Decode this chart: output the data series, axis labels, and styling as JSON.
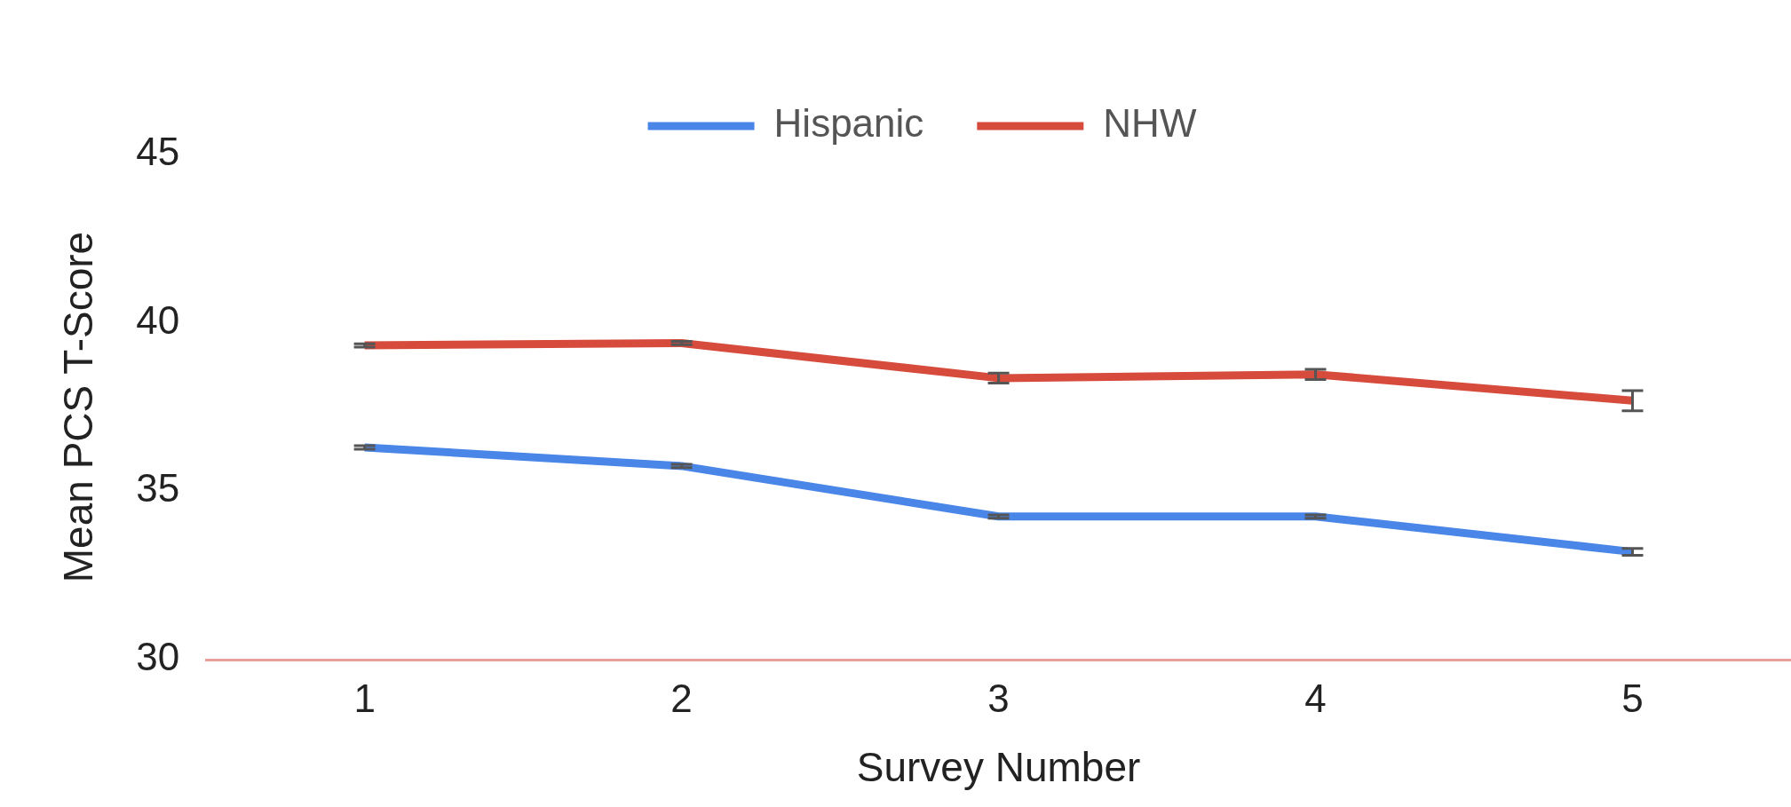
{
  "chart_data": {
    "type": "line",
    "xlabel": "Survey Number",
    "ylabel": "Mean PCS T-Score",
    "categories": [
      "1",
      "2",
      "3",
      "4",
      "5"
    ],
    "series": [
      {
        "name": "Hispanic",
        "color": "#4a86e8",
        "values": [
          36.3,
          35.75,
          34.25,
          34.25,
          33.2
        ],
        "errors": [
          0.05,
          0.05,
          0.05,
          0.05,
          0.1
        ]
      },
      {
        "name": "NHW",
        "color": "#d64b3c",
        "values": [
          39.33,
          39.4,
          38.36,
          38.47,
          37.69
        ],
        "errors": [
          0.05,
          0.05,
          0.15,
          0.15,
          0.3
        ]
      }
    ],
    "ylim": [
      30,
      45
    ],
    "yticks": [
      30,
      35,
      40,
      45
    ],
    "grid": false,
    "legend": "top",
    "marker": "none",
    "line_style": "solid"
  }
}
